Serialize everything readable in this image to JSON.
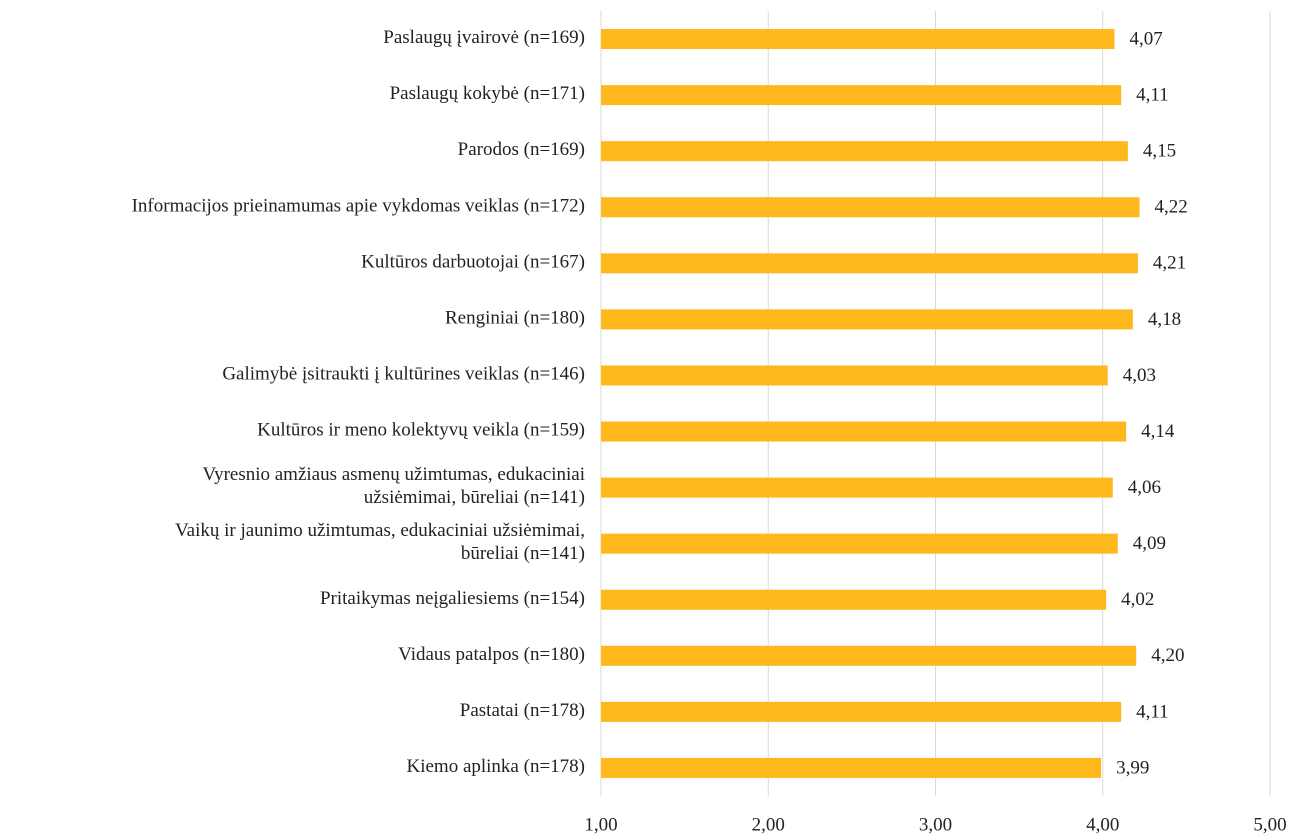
{
  "chart_data": {
    "type": "bar",
    "orientation": "horizontal",
    "categories": [
      "Paslaugų įvairovė (n=169)",
      "Paslaugų kokybė (n=171)",
      "Parodos (n=169)",
      "Informacijos prieinamumas apie vykdomas veiklas (n=172)",
      "Kultūros darbuotojai (n=167)",
      "Renginiai (n=180)",
      "Galimybė įsitraukti į kultūrines veiklas (n=146)",
      "Kultūros ir meno kolektyvų veikla (n=159)",
      "Vyresnio amžiaus asmenų užimtumas, edukaciniai\nužsiėmimai, būreliai (n=141)",
      "Vaikų ir jaunimo užimtumas, edukaciniai užsiėmimai,\nbūreliai (n=141)",
      "Pritaikymas neįgaliesiems (n=154)",
      "Vidaus patalpos (n=180)",
      "Pastatai (n=178)",
      "Kiemo aplinka (n=178)"
    ],
    "values": [
      4.07,
      4.11,
      4.15,
      4.22,
      4.21,
      4.18,
      4.03,
      4.14,
      4.06,
      4.09,
      4.02,
      4.2,
      4.11,
      3.99
    ],
    "value_labels": [
      "4,07",
      "4,11",
      "4,15",
      "4,22",
      "4,21",
      "4,18",
      "4,03",
      "4,14",
      "4,06",
      "4,09",
      "4,02",
      "4,20",
      "4,11",
      "3,99"
    ],
    "color": "#ffb81c",
    "xlim": [
      1,
      5
    ],
    "xticks": [
      {
        "value": 1,
        "label": "1,00"
      },
      {
        "value": 2,
        "label": "2,00"
      },
      {
        "value": 3,
        "label": "3,00"
      },
      {
        "value": 4,
        "label": "4,00"
      },
      {
        "value": 5,
        "label": "5,00"
      }
    ],
    "grid": true
  }
}
